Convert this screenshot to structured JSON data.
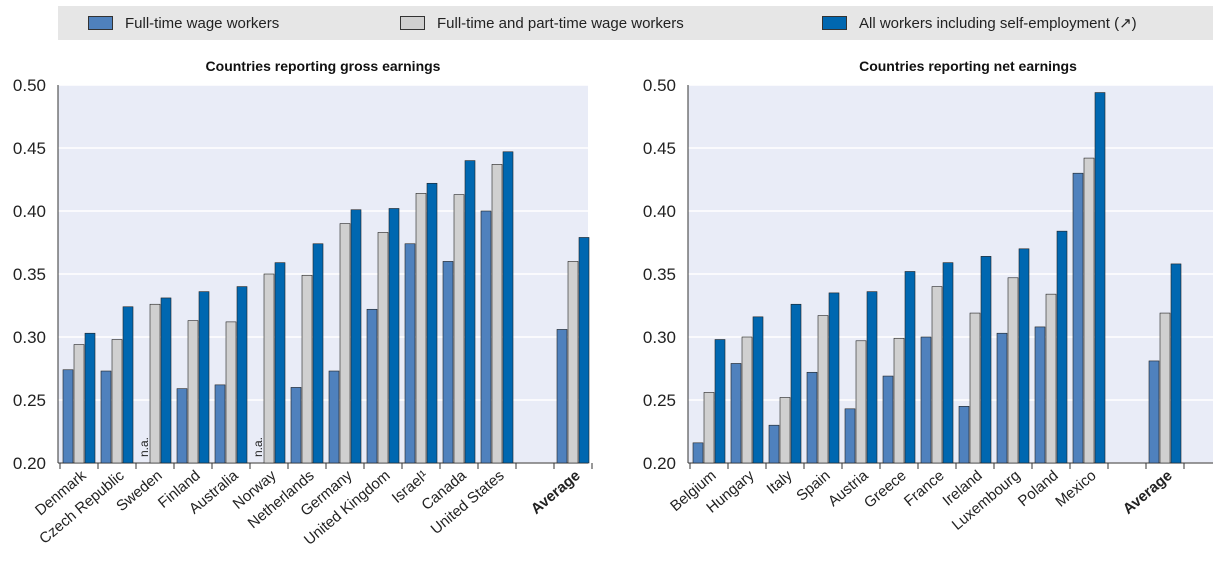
{
  "legend": [
    {
      "name": "Full-time wage workers",
      "color": "#4f81bd"
    },
    {
      "name": "Full-time and part-time wage workers",
      "color": "#d0d0d0"
    },
    {
      "name": "All workers including self-employment (↗)",
      "color": "#0067b0"
    }
  ],
  "chart_data": [
    {
      "type": "bar",
      "title": "Countries reporting gross earnings",
      "ylim": [
        0.2,
        0.5
      ],
      "yticks": [
        "0.20",
        "0.25",
        "0.30",
        "0.35",
        "0.40",
        "0.45",
        "0.50"
      ],
      "grid": true,
      "categories": [
        "Denmark",
        "Czech Republic",
        "Sweden",
        "Finland",
        "Australia",
        "Norway",
        "Netherlands",
        "Germany",
        "United Kingdom",
        "Israel¹",
        "Canada",
        "United States",
        "",
        "Average"
      ],
      "bold_categories": [
        "Average"
      ],
      "na_label": "n.a.",
      "series": [
        {
          "name": "Full-time wage workers",
          "values": [
            0.274,
            0.273,
            null,
            0.259,
            0.262,
            null,
            0.26,
            0.273,
            0.322,
            0.374,
            0.36,
            0.4,
            null,
            0.306
          ]
        },
        {
          "name": "Full-time and part-time wage workers",
          "values": [
            0.294,
            0.298,
            0.326,
            0.313,
            0.312,
            0.35,
            0.349,
            0.39,
            0.383,
            0.414,
            0.413,
            0.437,
            null,
            0.36
          ]
        },
        {
          "name": "All workers including self-employment (↗)",
          "values": [
            0.303,
            0.324,
            0.331,
            0.336,
            0.34,
            0.359,
            0.374,
            0.401,
            0.402,
            0.422,
            0.44,
            0.447,
            null,
            0.379
          ]
        }
      ]
    },
    {
      "type": "bar",
      "title": "Countries reporting net earnings",
      "ylim": [
        0.2,
        0.5
      ],
      "yticks": [
        "0.20",
        "0.25",
        "0.30",
        "0.35",
        "0.40",
        "0.45",
        "0.50"
      ],
      "grid": true,
      "categories": [
        "Belgium",
        "Hungary",
        "Italy",
        "Spain",
        "Austria",
        "Greece",
        "France",
        "Ireland",
        "Luxembourg",
        "Poland",
        "Mexico",
        "",
        "Average"
      ],
      "bold_categories": [
        "Average"
      ],
      "series": [
        {
          "name": "Full-time wage workers",
          "values": [
            0.216,
            0.279,
            0.23,
            0.272,
            0.243,
            0.269,
            0.3,
            0.245,
            0.303,
            0.308,
            0.43,
            null,
            0.281
          ]
        },
        {
          "name": "Full-time and part-time wage workers",
          "values": [
            0.256,
            0.3,
            0.252,
            0.317,
            0.297,
            0.299,
            0.34,
            0.319,
            0.347,
            0.334,
            0.442,
            null,
            0.319
          ]
        },
        {
          "name": "All workers including self-employment (↗)",
          "values": [
            0.298,
            0.316,
            0.326,
            0.335,
            0.336,
            0.352,
            0.359,
            0.364,
            0.37,
            0.384,
            0.494,
            null,
            0.358
          ]
        }
      ]
    }
  ]
}
